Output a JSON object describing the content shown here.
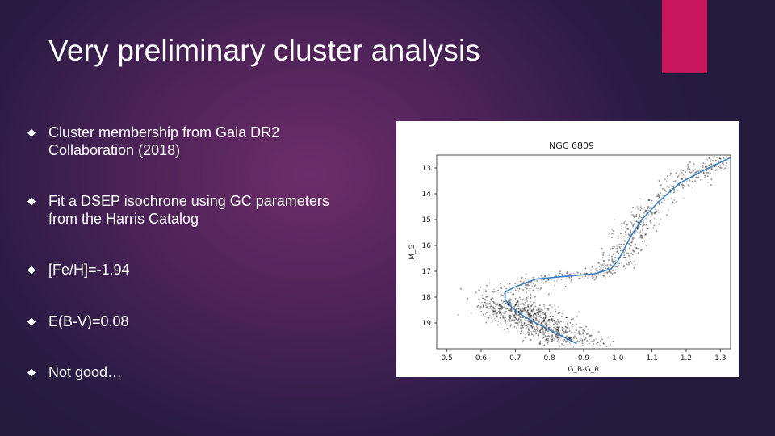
{
  "slide": {
    "title": "Very preliminary cluster analysis",
    "accent_color": "#c8175d",
    "bullets": [
      {
        "line1": "Cluster membership from Gaia DR2",
        "line2": "Collaboration (2018)"
      },
      {
        "line1": "Fit a DSEP isochrone using GC parameters",
        "line2": "from the Harris Catalog"
      },
      {
        "line1": "[Fe/H]=-1.94",
        "line2": ""
      },
      {
        "line1": "E(B-V)=0.08",
        "line2": ""
      },
      {
        "line1": "Not good…",
        "line2": ""
      }
    ],
    "bullet_icon": "diamond-bullet-icon"
  },
  "chart_data": {
    "type": "scatter",
    "title": "NGC 6809",
    "xlabel": "G_B-G_R",
    "ylabel": "M_G",
    "xlim": [
      0.47,
      1.33
    ],
    "ylim": [
      20.0,
      12.5
    ],
    "y_inverted": true,
    "x_ticks": [
      "0.5",
      "0.6",
      "0.7",
      "0.8",
      "0.9",
      "1.0",
      "1.1",
      "1.2",
      "1.3"
    ],
    "x_tick_values": [
      0.5,
      0.6,
      0.7,
      0.8,
      0.9,
      1.0,
      1.1,
      1.2,
      1.3
    ],
    "y_ticks": [
      "13",
      "14",
      "15",
      "16",
      "17",
      "18",
      "19"
    ],
    "y_tick_values": [
      13,
      14,
      15,
      16,
      17,
      18,
      19
    ],
    "point_color": "#000000",
    "isochrone": {
      "color": "#3a7fc1",
      "x": [
        0.88,
        0.82,
        0.76,
        0.72,
        0.69,
        0.67,
        0.67,
        0.7,
        0.76,
        0.84,
        0.93,
        0.98,
        1.0,
        1.02,
        1.04,
        1.07,
        1.12,
        1.18,
        1.25,
        1.33
      ],
      "y": [
        19.8,
        19.4,
        19.0,
        18.7,
        18.4,
        18.1,
        17.8,
        17.6,
        17.3,
        17.2,
        17.1,
        16.9,
        16.6,
        16.1,
        15.6,
        15.0,
        14.3,
        13.6,
        13.1,
        12.6
      ]
    }
  }
}
